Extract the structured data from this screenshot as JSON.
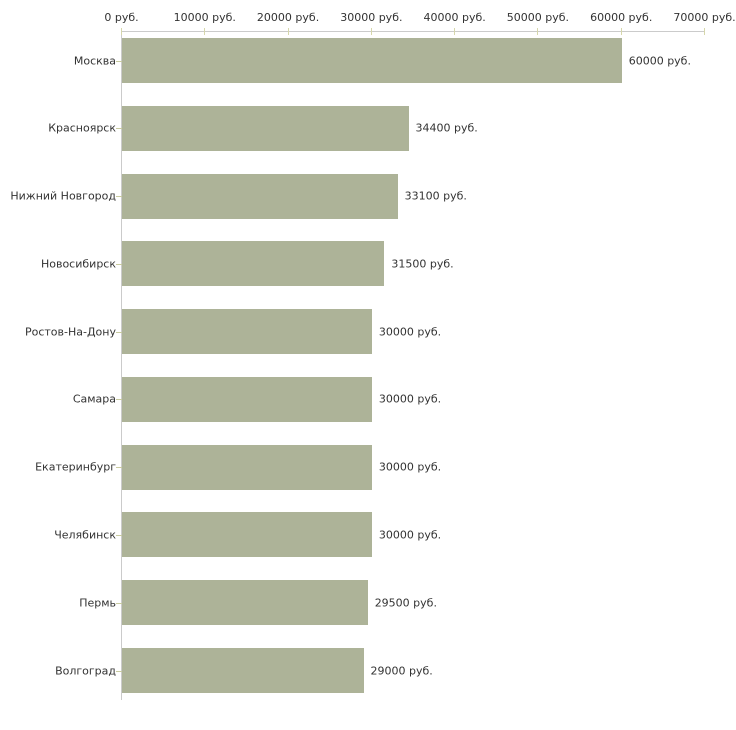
{
  "chart_data": {
    "type": "bar",
    "orientation": "horizontal",
    "categories": [
      "Москва",
      "Красноярск",
      "Нижний Новгород",
      "Новосибирск",
      "Ростов-На-Дону",
      "Самара",
      "Екатеринбург",
      "Челябинск",
      "Пермь",
      "Волгоград"
    ],
    "values": [
      60000,
      34400,
      33100,
      31500,
      30000,
      30000,
      30000,
      30000,
      29500,
      29000
    ],
    "value_labels": [
      "60000 руб.",
      "34400 руб.",
      "33100 руб.",
      "31500 руб.",
      "30000 руб.",
      "30000 руб.",
      "30000 руб.",
      "30000 руб.",
      "29500 руб.",
      "29000 руб."
    ],
    "x_tick_labels": [
      "0 руб.",
      "10000 руб.",
      "20000 руб.",
      "30000 руб.",
      "40000 руб.",
      "50000 руб.",
      "60000 руб.",
      "70000 руб."
    ],
    "x_tick_values": [
      0,
      10000,
      20000,
      30000,
      40000,
      50000,
      60000,
      70000
    ],
    "xlim": [
      0,
      70000
    ],
    "unit": "руб.",
    "grid": false,
    "legend_position": "none",
    "colors": {
      "bar": "#adb398",
      "axis_line": "#cbcbcb",
      "tick": "#d6d7ab",
      "text": "#333333",
      "background": "#ffffff"
    }
  }
}
